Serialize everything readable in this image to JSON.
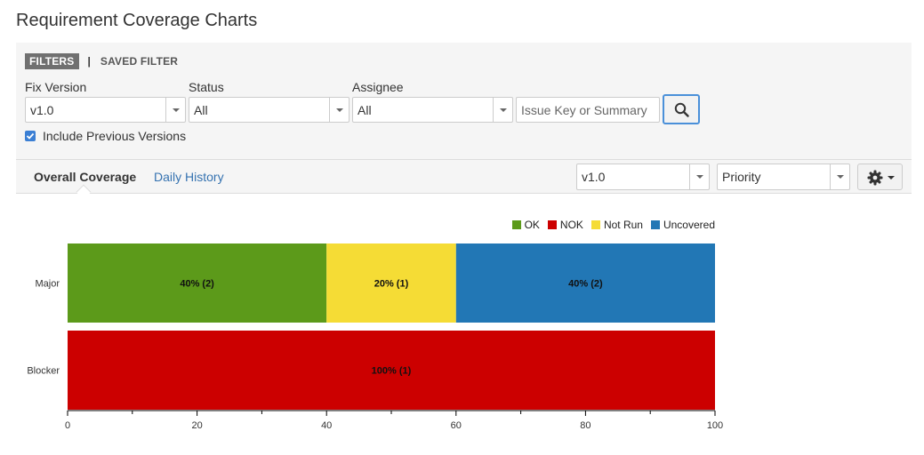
{
  "page": {
    "title": "Requirement Coverage Charts"
  },
  "filters": {
    "tab_filters": "FILTERS",
    "tab_separator": "|",
    "tab_saved": "SAVED FILTER",
    "fix_version": {
      "label": "Fix Version",
      "value": "v1.0"
    },
    "status": {
      "label": "Status",
      "value": "All"
    },
    "assignee": {
      "label": "Assignee",
      "value": "All"
    },
    "search": {
      "placeholder": "Issue Key or Summary",
      "icon": "search-icon"
    },
    "include_previous": {
      "label": "Include Previous Versions",
      "checked": true
    }
  },
  "tabs": {
    "overall": "Overall Coverage",
    "history": "Daily History",
    "version_select": "v1.0",
    "group_select": "Priority",
    "settings_icon": "gear-icon"
  },
  "chart_data": {
    "type": "bar",
    "orientation": "horizontal",
    "stacked": true,
    "categories": [
      "Major",
      "Blocker"
    ],
    "series": [
      {
        "name": "OK",
        "color": "#5c9a1a",
        "values": [
          40,
          0
        ],
        "labels": [
          "40% (2)",
          ""
        ]
      },
      {
        "name": "NOK",
        "color": "#cc0000",
        "values": [
          0,
          100
        ],
        "labels": [
          "",
          "100% (1)"
        ]
      },
      {
        "name": "Not Run",
        "color": "#f5dc35",
        "values": [
          20,
          0
        ],
        "labels": [
          "20% (1)",
          ""
        ]
      },
      {
        "name": "Uncovered",
        "color": "#2277b5",
        "values": [
          40,
          0
        ],
        "labels": [
          "40% (2)",
          ""
        ]
      }
    ],
    "xlim": [
      0,
      100
    ],
    "xticks": [
      0,
      20,
      40,
      60,
      80,
      100
    ],
    "legend": "top-right"
  }
}
